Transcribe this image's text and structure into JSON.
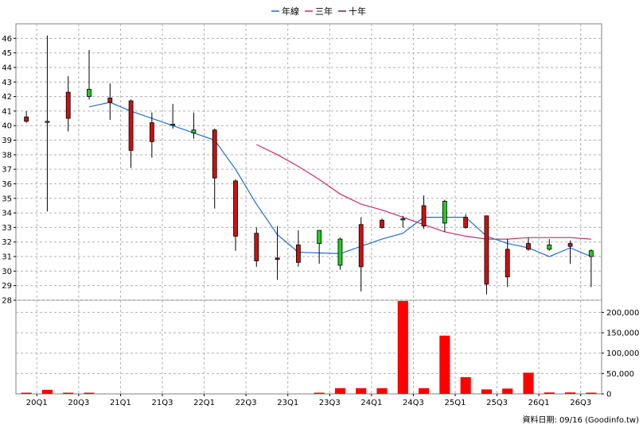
{
  "chart_data": {
    "type": "candlestick",
    "legend": {
      "placement": "top-center",
      "entries": [
        {
          "name": "年線",
          "color": "#1f6fd0"
        },
        {
          "name": "三年",
          "color": "#cc2b6b"
        },
        {
          "name": "十年",
          "color": "#7a1f3a"
        }
      ]
    },
    "source": "資料日期: 09/16 (Goodinfo.tw)",
    "price_axis": {
      "ylim": [
        28,
        47
      ],
      "ticks": [
        28,
        29,
        30,
        31,
        32,
        33,
        34,
        35,
        36,
        37,
        38,
        39,
        40,
        41,
        42,
        43,
        44,
        45,
        46
      ],
      "tick_labels": [
        "28",
        "29",
        "30",
        "31",
        "32",
        "33",
        "34",
        "35",
        "36",
        "37",
        "38",
        "39",
        "40",
        "41",
        "42",
        "43",
        "44",
        "45",
        "46"
      ],
      "grid": true
    },
    "volume_axis": {
      "ylim": [
        0,
        230000
      ],
      "ticks": [
        0,
        50000,
        100000,
        150000,
        200000
      ],
      "tick_labels": [
        "0",
        "50,000",
        "100,000",
        "150,000",
        "200,000"
      ],
      "grid": true
    },
    "x_axis": {
      "tick_labels": [
        "20Q1",
        "20Q3",
        "21Q1",
        "21Q3",
        "22Q1",
        "22Q3",
        "23Q1",
        "23Q3",
        "24Q1",
        "24Q3",
        "25Q1",
        "25Q3",
        "26Q1",
        "26Q3"
      ],
      "tick_index": [
        1,
        3,
        5,
        7,
        9,
        11,
        13,
        15,
        17,
        19,
        21,
        23,
        25,
        27
      ]
    },
    "candles": [
      {
        "open": 40.6,
        "high": 41.0,
        "low": 40.2,
        "close": 40.3
      },
      {
        "open": 40.3,
        "high": 46.2,
        "low": 34.1,
        "close": 40.3
      },
      {
        "open": 42.3,
        "high": 43.4,
        "low": 39.6,
        "close": 40.5
      },
      {
        "open": 42.0,
        "high": 45.2,
        "low": 41.8,
        "close": 42.5
      },
      {
        "open": 41.9,
        "high": 42.9,
        "low": 40.4,
        "close": 41.6
      },
      {
        "open": 41.7,
        "high": 41.8,
        "low": 37.1,
        "close": 38.3
      },
      {
        "open": 40.2,
        "high": 40.9,
        "low": 37.8,
        "close": 38.9
      },
      {
        "open": 40.1,
        "high": 41.5,
        "low": 39.8,
        "close": 40.1
      },
      {
        "open": 39.5,
        "high": 40.9,
        "low": 39.1,
        "close": 39.7
      },
      {
        "open": 39.7,
        "high": 39.8,
        "low": 34.3,
        "close": 36.4
      },
      {
        "open": 36.2,
        "high": 36.3,
        "low": 31.4,
        "close": 32.4
      },
      {
        "open": 32.6,
        "high": 33.0,
        "low": 30.3,
        "close": 30.7
      },
      {
        "open": 30.9,
        "high": 33.1,
        "low": 29.4,
        "close": 30.8
      },
      {
        "open": 31.8,
        "high": 32.8,
        "low": 30.3,
        "close": 30.6
      },
      {
        "open": 31.9,
        "high": 32.7,
        "low": 30.5,
        "close": 32.8
      },
      {
        "open": 30.4,
        "high": 32.3,
        "low": 30.1,
        "close": 32.2
      },
      {
        "open": 33.2,
        "high": 33.7,
        "low": 28.6,
        "close": 30.3
      },
      {
        "open": 33.5,
        "high": 33.6,
        "low": 32.9,
        "close": 33.0
      },
      {
        "open": 33.6,
        "high": 33.8,
        "low": 33.0,
        "close": 33.6
      },
      {
        "open": 34.5,
        "high": 35.2,
        "low": 32.9,
        "close": 33.1
      },
      {
        "open": 33.3,
        "high": 34.9,
        "low": 32.7,
        "close": 34.8
      },
      {
        "open": 33.7,
        "high": 33.9,
        "low": 32.9,
        "close": 33.0
      },
      {
        "open": 33.8,
        "high": 33.8,
        "low": 28.4,
        "close": 29.1
      },
      {
        "open": 31.5,
        "high": 32.2,
        "low": 28.9,
        "close": 29.6
      },
      {
        "open": 31.9,
        "high": 32.3,
        "low": 31.4,
        "close": 31.5
      },
      {
        "open": 31.5,
        "high": 32.2,
        "low": 31.4,
        "close": 31.8
      },
      {
        "open": 31.9,
        "high": 32.1,
        "low": 30.5,
        "close": 31.7
      },
      {
        "open": 31.0,
        "high": 31.5,
        "low": 28.9,
        "close": 31.4
      }
    ],
    "series": [
      {
        "name": "年線",
        "values": [
          null,
          null,
          null,
          41.3,
          41.6,
          41.0,
          40.5,
          40.0,
          39.5,
          39.0,
          37.0,
          34.6,
          32.5,
          31.3,
          31.25,
          31.2,
          31.7,
          32.2,
          32.6,
          33.7,
          33.7,
          33.7,
          32.4,
          31.9,
          31.6,
          31.0,
          31.6,
          31.0
        ]
      },
      {
        "name": "三年",
        "values": [
          null,
          null,
          null,
          null,
          null,
          null,
          null,
          null,
          null,
          null,
          null,
          38.7,
          38.0,
          37.2,
          36.3,
          35.3,
          34.6,
          34.2,
          33.7,
          33.2,
          32.7,
          32.4,
          32.2,
          32.2,
          32.3,
          32.3,
          32.3,
          32.2
        ]
      }
    ],
    "volume": [
      2000,
      10000,
      1500,
      1000,
      0,
      0,
      0,
      0,
      0,
      0,
      0,
      0,
      0,
      0,
      2500,
      14000,
      14000,
      14000,
      228000,
      14000,
      143000,
      41000,
      11000,
      13000,
      52000,
      3500,
      3500,
      3000
    ]
  }
}
